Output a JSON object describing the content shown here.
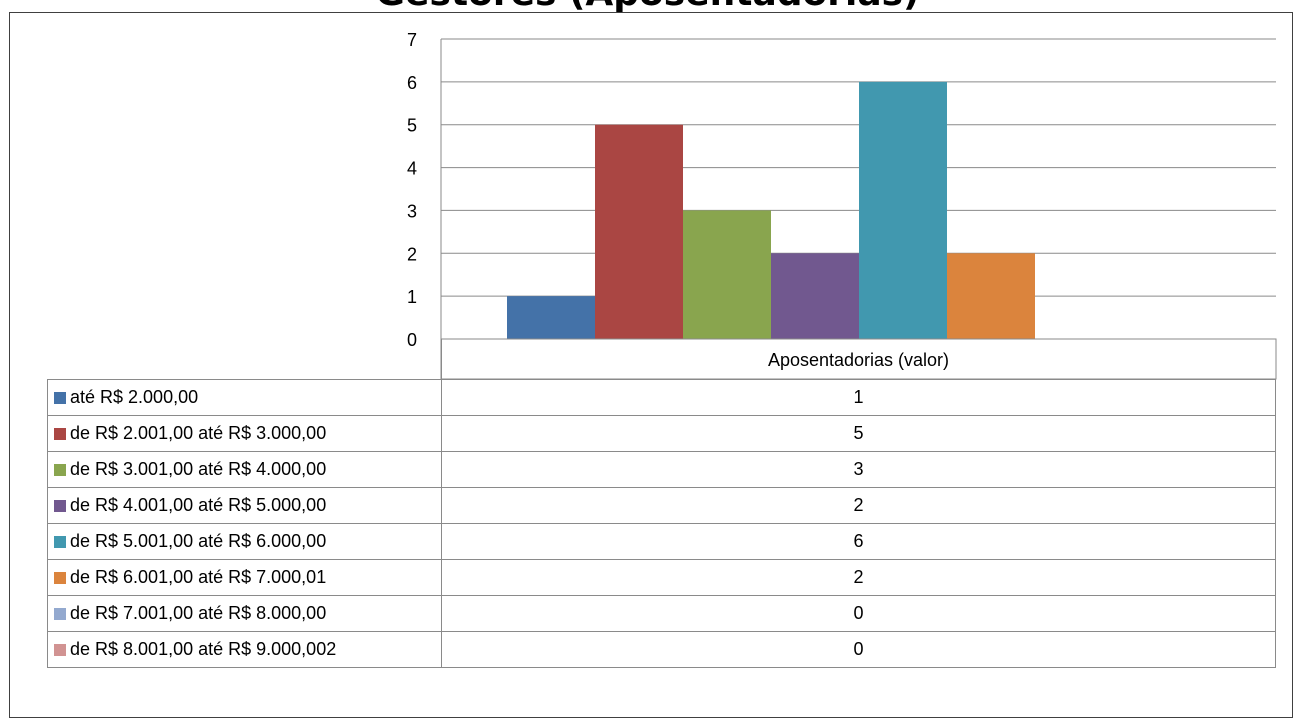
{
  "chart_data": {
    "type": "bar",
    "title": "Gestores (Aposentadorias)",
    "categories": [
      "Aposentadorias (valor)"
    ],
    "series": [
      {
        "name": "até R$ 2.000,00",
        "color": "#4472A8",
        "values": [
          1
        ]
      },
      {
        "name": "de R$ 2.001,00 até R$ 3.000,00",
        "color": "#AA4643",
        "values": [
          5
        ]
      },
      {
        "name": "de R$ 3.001,00 até R$ 4.000,00",
        "color": "#89A54E",
        "values": [
          3
        ]
      },
      {
        "name": "de R$ 4.001,00 até R$ 5.000,00",
        "color": "#71588F",
        "values": [
          2
        ]
      },
      {
        "name": "de R$ 5.001,00 até R$ 6.000,00",
        "color": "#4198AF",
        "values": [
          6
        ]
      },
      {
        "name": "de R$ 6.001,00 até R$ 7.000,01",
        "color": "#DB843D",
        "values": [
          2
        ]
      },
      {
        "name": "de R$ 7.001,00 até R$ 8.000,00",
        "color": "#93A9CF",
        "values": [
          0
        ]
      },
      {
        "name": "de R$ 8.001,00 até R$ 9.000,002",
        "color": "#D19392",
        "values": [
          0
        ]
      }
    ],
    "ylim": [
      0,
      7
    ],
    "yticks": [
      0,
      1,
      2,
      3,
      4,
      5,
      6,
      7
    ],
    "grid": true,
    "legend": "data-table"
  }
}
